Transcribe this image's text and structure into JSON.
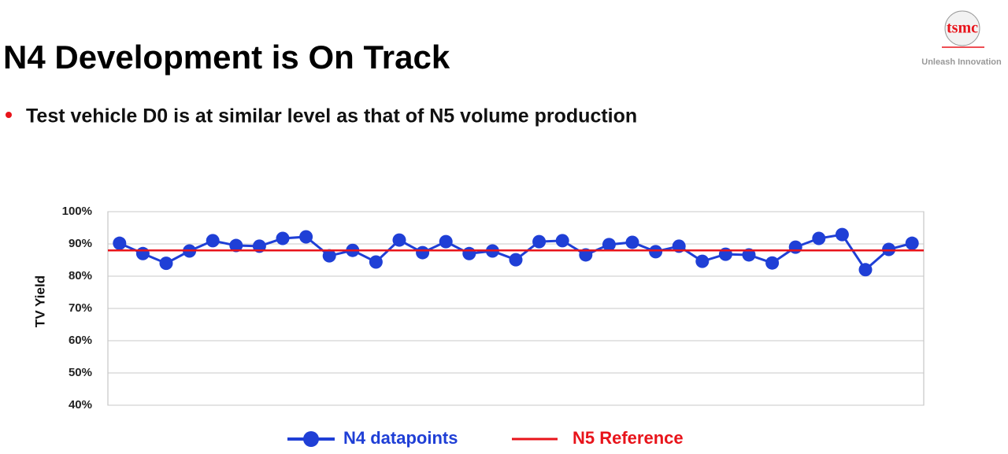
{
  "slide": {
    "title": "N4 Development is On Track",
    "bullet": "Test vehicle D0 is at similar level as that of N5 volume production",
    "logo": "tsmc",
    "tagline": "Unleash Innovation"
  },
  "chart_data": {
    "type": "line",
    "ylabel": "TV Yield",
    "categories": [
      null,
      null,
      null,
      null,
      null,
      null,
      null,
      null,
      null,
      null,
      null,
      null,
      null,
      null,
      null,
      null,
      null,
      null,
      null,
      null,
      null,
      null,
      null,
      null,
      null,
      null,
      null,
      null,
      null,
      null,
      null,
      null,
      null,
      null,
      null
    ],
    "series": [
      {
        "name": "N4 datapoints",
        "color": "#1f3fd6",
        "values": [
          90.2,
          87,
          84,
          87.8,
          91,
          89.5,
          89.3,
          91.7,
          92.2,
          86.3,
          88,
          84.4,
          91.2,
          87.3,
          90.7,
          87,
          87.8,
          85.1,
          90.7,
          91,
          86.6,
          89.8,
          90.5,
          87.6,
          89.3,
          84.6,
          86.8,
          86.6,
          84.1,
          89,
          91.7,
          92.9,
          82,
          88.3,
          90.2
        ]
      }
    ],
    "reference": {
      "name": "N5 Reference",
      "color": "#e8141b",
      "value": 88
    },
    "ylim": [
      40,
      100
    ],
    "yticks": [
      {
        "value": 40,
        "label": "40%"
      },
      {
        "value": 50,
        "label": "50%"
      },
      {
        "value": 60,
        "label": "60%"
      },
      {
        "value": 70,
        "label": "70%"
      },
      {
        "value": 80,
        "label": "80%"
      },
      {
        "value": 90,
        "label": "90%"
      },
      {
        "value": 100,
        "label": "100%"
      }
    ],
    "grid": true,
    "legend": "bottom"
  }
}
